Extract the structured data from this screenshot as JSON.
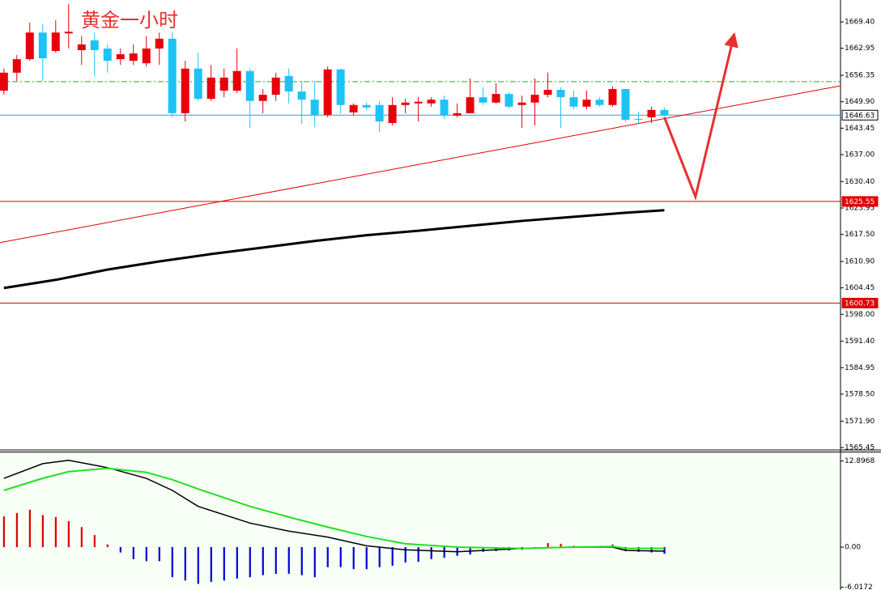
{
  "chart_data": [
    {
      "type": "candlestick",
      "title": "黄金一小时",
      "open": [
        1652.6,
        1657.0,
        1660.3,
        1666.8,
        1662.3,
        1666.6,
        1662.5,
        1664.9,
        1662.9,
        1660.3,
        1659.9,
        1659.3,
        1662.9,
        1665.3,
        1647.1,
        1658.0,
        1650.6,
        1652.6,
        1652.6,
        1657.4,
        1650.1,
        1651.6,
        1656.2,
        1652.4,
        1650.4,
        1646.7,
        1657.8,
        1647.3,
        1649.1,
        1649.1,
        1644.7,
        1649.1,
        1649.5,
        1649.5,
        1650.4,
        1646.5,
        1647.1,
        1651.0,
        1649.7,
        1651.8,
        1649.1,
        1649.7,
        1651.6,
        1652.8,
        1651.0,
        1648.7,
        1650.4,
        1649.1,
        1653.0,
        1645.7,
        1646.1,
        1647.9
      ],
      "high": [
        1658.0,
        1661.3,
        1669.2,
        1668.8,
        1669.8,
        1673.8,
        1665.9,
        1666.8,
        1663.9,
        1662.9,
        1663.9,
        1665.9,
        1666.8,
        1666.8,
        1659.9,
        1661.9,
        1658.9,
        1658.0,
        1662.9,
        1658.0,
        1653.0,
        1657.0,
        1658.0,
        1655.0,
        1655.0,
        1658.5,
        1658.0,
        1649.5,
        1649.7,
        1650.1,
        1651.0,
        1650.6,
        1651.0,
        1651.0,
        1651.4,
        1649.5,
        1655.6,
        1653.4,
        1654.4,
        1652.2,
        1651.4,
        1655.6,
        1657.0,
        1653.4,
        1652.6,
        1652.6,
        1651.0,
        1653.6,
        1653.0,
        1647.5,
        1648.7,
        1648.5
      ],
      "low": [
        1651.6,
        1655.0,
        1659.9,
        1655.0,
        1661.9,
        1662.9,
        1658.9,
        1656.0,
        1657.0,
        1658.9,
        1658.9,
        1658.5,
        1658.9,
        1646.1,
        1645.1,
        1650.1,
        1650.1,
        1651.0,
        1652.0,
        1643.5,
        1647.1,
        1650.1,
        1649.5,
        1644.5,
        1643.7,
        1646.1,
        1647.1,
        1646.5,
        1647.9,
        1642.5,
        1644.1,
        1647.1,
        1645.1,
        1648.7,
        1645.7,
        1646.1,
        1647.1,
        1649.1,
        1649.5,
        1648.3,
        1643.5,
        1644.1,
        1651.0,
        1643.5,
        1648.1,
        1648.1,
        1648.7,
        1648.7,
        1645.1,
        1644.7,
        1644.7,
        1646.3
      ],
      "close": [
        1657.0,
        1660.3,
        1666.8,
        1660.5,
        1666.8,
        1667.0,
        1663.9,
        1662.5,
        1659.9,
        1661.5,
        1661.7,
        1662.9,
        1665.3,
        1647.1,
        1658.0,
        1650.6,
        1655.8,
        1655.8,
        1657.4,
        1650.1,
        1651.6,
        1655.8,
        1652.4,
        1650.4,
        1646.7,
        1657.8,
        1649.1,
        1649.1,
        1648.5,
        1645.1,
        1649.1,
        1649.7,
        1649.9,
        1650.4,
        1646.5,
        1647.1,
        1651.0,
        1649.7,
        1651.8,
        1648.7,
        1649.7,
        1651.6,
        1652.8,
        1651.0,
        1648.7,
        1650.4,
        1649.1,
        1653.0,
        1645.5,
        1645.5,
        1647.9,
        1646.63
      ],
      "up_color": "#e8000b",
      "down_color": "#1ec3f5",
      "xlim": [
        -0.3,
        64.6
      ],
      "ylim": [
        1564.85,
        1674.75
      ],
      "yticks": [
        {
          "value": 1669.4,
          "label": "1669.40"
        },
        {
          "value": 1662.95,
          "label": "1662.95"
        },
        {
          "value": 1656.35,
          "label": "1656.35"
        },
        {
          "value": 1649.9,
          "label": "1649.90"
        },
        {
          "value": 1643.45,
          "label": "1643.45"
        },
        {
          "value": 1637.0,
          "label": "1637.00"
        },
        {
          "value": 1630.4,
          "label": "1630.40"
        },
        {
          "value": 1623.95,
          "label": "1623.95"
        },
        {
          "value": 1617.5,
          "label": "1617.50"
        },
        {
          "value": 1610.9,
          "label": "1610.90"
        },
        {
          "value": 1604.45,
          "label": "1604.45"
        },
        {
          "value": 1598.0,
          "label": "1598.00"
        },
        {
          "value": 1591.4,
          "label": "1591.40"
        },
        {
          "value": 1584.95,
          "label": "1584.95"
        },
        {
          "value": 1578.5,
          "label": "1578.50"
        },
        {
          "value": 1571.9,
          "label": "1571.90"
        },
        {
          "value": 1565.45,
          "label": "1565.45"
        }
      ],
      "levels": [
        {
          "value": 1625.55,
          "color": "#e00000"
        },
        {
          "value": 1600.73,
          "color": "#e00000"
        }
      ],
      "current_price": {
        "value": 1646.63,
        "color": "#4a90d0"
      },
      "dashed_level": {
        "value": 1654.8,
        "color": "#22aa22"
      },
      "trend_line": {
        "x": [
          -0.3,
          64.6
        ],
        "values": [
          1615.5,
          1653.8
        ],
        "color": "#e00000"
      },
      "moving_average": {
        "x": [
          0,
          4,
          8,
          12,
          16,
          20,
          24,
          28,
          32,
          36,
          40,
          44,
          48,
          51
        ],
        "values": [
          1604.4,
          1606.4,
          1608.9,
          1610.9,
          1612.7,
          1614.3,
          1615.9,
          1617.3,
          1618.4,
          1619.6,
          1620.8,
          1621.8,
          1622.8,
          1623.4
        ],
        "color": "#000000"
      },
      "forecast_arrow": {
        "x": [
          51,
          53.4,
          56.4
        ],
        "values": [
          1646.1,
          1626.7,
          1666.5
        ],
        "color": "#e83030"
      }
    },
    {
      "type": "macd",
      "histogram": [
        4.6,
        5.1,
        5.6,
        4.8,
        4.5,
        3.9,
        3.0,
        1.8,
        0.4,
        -0.8,
        -1.8,
        -2.1,
        -2.1,
        -4.5,
        -5.0,
        -5.5,
        -5.2,
        -5.0,
        -4.7,
        -4.5,
        -4.2,
        -4.0,
        -4.0,
        -4.2,
        -4.5,
        -3.0,
        -3.0,
        -3.3,
        -3.3,
        -3.0,
        -2.8,
        -2.3,
        -2.2,
        -1.8,
        -1.6,
        -1.3,
        -1.1,
        -0.7,
        -0.6,
        -0.5,
        -0.4,
        -0.1,
        0.6,
        0.5,
        0.2,
        0.1,
        -0.1,
        0.4,
        -0.6,
        -0.7,
        -0.8,
        -1.0
      ],
      "pos_color": "#e00000",
      "neg_color": "#0000d8",
      "macd": {
        "x": [
          0,
          3,
          5,
          8,
          11,
          13,
          15,
          19,
          22,
          25,
          28,
          31,
          35,
          40,
          44,
          47,
          48,
          51
        ],
        "values": [
          10.3,
          12.5,
          13.0,
          11.9,
          10.3,
          8.5,
          6.1,
          3.6,
          2.4,
          1.5,
          0.2,
          -0.4,
          -0.7,
          -0.2,
          0,
          0,
          -0.5,
          -0.6
        ],
        "color": "#000000"
      },
      "signal": {
        "x": [
          0,
          3,
          5,
          8,
          11,
          13,
          15,
          19,
          22,
          25,
          28,
          31,
          35,
          40,
          44,
          47,
          48,
          51
        ],
        "values": [
          8.5,
          10.3,
          11.3,
          11.8,
          11.2,
          10.1,
          8.7,
          6.1,
          4.5,
          3.0,
          1.6,
          0.5,
          0,
          -0.2,
          0,
          0.1,
          -0.2,
          -0.2
        ],
        "color": "#22e022"
      },
      "xlim": [
        -0.3,
        64.6
      ],
      "ylim": [
        -6.42,
        14.18
      ],
      "yticks": [
        12.8968,
        {
          "value": 0,
          "label": "0.00"
        },
        -6.0172
      ]
    }
  ]
}
